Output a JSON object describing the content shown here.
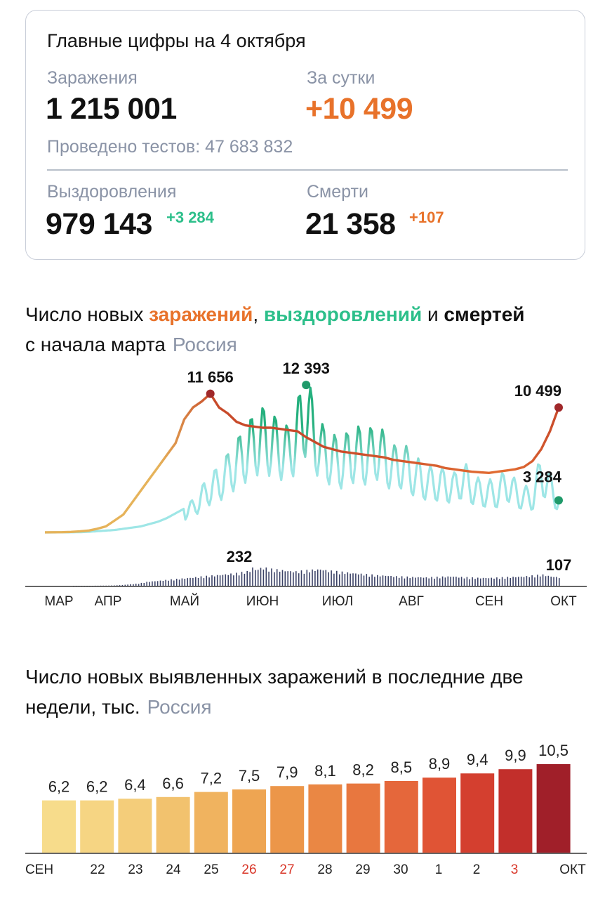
{
  "card": {
    "title": "Главные цифры на 4 октября",
    "infections_label": "Заражения",
    "infections_value": "1 215 001",
    "daily_label": "За сутки",
    "daily_value": "+10 499",
    "tests_text": "Проведено тестов: 47 683 832",
    "recoveries_label": "Выздоровления",
    "recoveries_value": "979 143",
    "recoveries_delta": "+3 284",
    "deaths_label": "Смерти",
    "deaths_value": "21 358",
    "deaths_delta": "+107"
  },
  "heading1": {
    "part1": "Число новых ",
    "infections": "заражений",
    "comma": ", ",
    "recoveries": "выздоровлений",
    "and": " и ",
    "deaths": "смертей",
    "line2": "с начала марта",
    "region": "Россия"
  },
  "heading2": {
    "text": "Число новых выявленных заражений в последние две недели, тыс.",
    "region": "Россия"
  },
  "colors": {
    "infections_early": "#e6b35a",
    "infections_peak": "#c84a2a",
    "infections_late": "#e36e33",
    "recoveries_light": "#9ee6e6",
    "recoveries_dark": "#25b07e",
    "deaths": "#3b4266",
    "marker_red": "#a0282a",
    "marker_green": "#1f9a6a"
  },
  "chart_data": [
    {
      "type": "line",
      "months": [
        "МАР",
        "АПР",
        "МАЙ",
        "ИЮН",
        "ИЮЛ",
        "АВГ",
        "СЕН",
        "ОКТ"
      ],
      "series": [
        {
          "name": "заражений",
          "values": [
            3,
            10,
            20,
            40,
            80,
            150,
            300,
            500,
            1000,
            1500,
            2500,
            3500,
            4500,
            5500,
            6500,
            7500,
            9500,
            10500,
            11000,
            11656,
            10500,
            10000,
            9300,
            9000,
            8900,
            8800,
            8800,
            8700,
            8600,
            8500,
            8000,
            7600,
            7200,
            7000,
            6800,
            6700,
            6600,
            6500,
            6400,
            6300,
            6100,
            6000,
            5900,
            5800,
            5700,
            5600,
            5400,
            5300,
            5200,
            5100,
            5050,
            5000,
            5100,
            5200,
            5300,
            5500,
            6000,
            7000,
            8500,
            10499
          ]
        },
        {
          "name": "выздоровлений",
          "values": [
            0,
            2,
            5,
            10,
            20,
            50,
            100,
            150,
            200,
            300,
            400,
            500,
            700,
            900,
            1200,
            1600,
            2000,
            2500,
            3500,
            4500,
            5000,
            6000,
            7000,
            8000,
            9000,
            9500,
            9000,
            8500,
            8000,
            10000,
            12393,
            9500,
            8000,
            7500,
            7000,
            7800,
            8000,
            7500,
            8500,
            7500,
            6500,
            7000,
            6000,
            5500,
            5000,
            5000,
            4800,
            4500,
            5500,
            4500,
            4000,
            4000,
            3900,
            5000,
            4000,
            3500,
            3500,
            6000,
            4500,
            3284
          ]
        },
        {
          "name": "смертей",
          "values": [
            0,
            0,
            0,
            1,
            2,
            5,
            10,
            20,
            30,
            50,
            60,
            70,
            80,
            90,
            100,
            110,
            120,
            130,
            140,
            150,
            160,
            180,
            200,
            232,
            210,
            200,
            190,
            180,
            190,
            200,
            210,
            190,
            180,
            170,
            160,
            150,
            140,
            130,
            130,
            120,
            115,
            110,
            110,
            105,
            110,
            115,
            120,
            110,
            105,
            100,
            100,
            100,
            105,
            110,
            115,
            120,
            130,
            140,
            120,
            107
          ]
        }
      ],
      "annotations": [
        {
          "series": "заражений",
          "label": "11 656",
          "value": 11656
        },
        {
          "series": "выздоровлений",
          "label": "12 393",
          "value": 12393
        },
        {
          "series": "заражений",
          "label": "10 499",
          "value": 10499
        },
        {
          "series": "выздоровлений",
          "label": "3 284",
          "value": 3284
        },
        {
          "series": "смертей",
          "label": "232",
          "value": 232
        },
        {
          "series": "смертей",
          "label": "107",
          "value": 107
        }
      ]
    },
    {
      "type": "bar",
      "ylabel": "тыс.",
      "categories": [
        "СЕН",
        "22",
        "23",
        "24",
        "25",
        "26",
        "27",
        "28",
        "29",
        "30",
        "1",
        "2",
        "3",
        "ОКТ"
      ],
      "bar_labels": [
        "6,2",
        "6,2",
        "6,4",
        "6,6",
        "7,2",
        "7,5",
        "7,9",
        "8,1",
        "8,2",
        "8,5",
        "8,9",
        "9,4",
        "9,9",
        "10,5"
      ],
      "values": [
        6.2,
        6.2,
        6.4,
        6.6,
        7.2,
        7.5,
        7.9,
        8.1,
        8.2,
        8.5,
        8.9,
        9.4,
        9.9,
        10.5
      ],
      "weekend_categories": [
        "26",
        "27",
        "3"
      ],
      "bar_colors": [
        "#f7dc8b",
        "#f6d583",
        "#f4cd7a",
        "#f2c26e",
        "#f0b35f",
        "#eea552",
        "#ec9649",
        "#ea8744",
        "#e8773f",
        "#e5673b",
        "#e05435",
        "#d43f2f",
        "#c22f2b",
        "#a01f29"
      ]
    }
  ]
}
